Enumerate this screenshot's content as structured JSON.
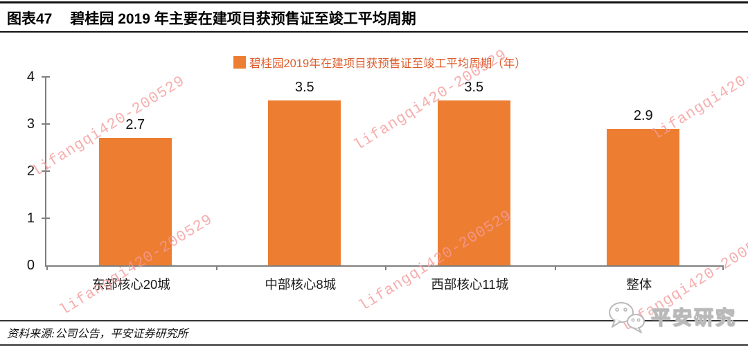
{
  "header": {
    "figure_label": "图表47",
    "title": "碧桂园 2019 年主要在建项目获预售证至竣工平均周期"
  },
  "chart_data": {
    "type": "bar",
    "title": "图表47 碧桂园 2019 年主要在建项目获预售证至竣工平均周期",
    "legend": [
      "碧桂园2019年在建项目获预售证至竣工平均周期（年）"
    ],
    "legend_position": "top-center",
    "categories": [
      "东部核心20城",
      "中部核心8城",
      "西部核心11城",
      "整体"
    ],
    "values": [
      2.7,
      3.5,
      3.5,
      2.9
    ],
    "value_labels": [
      "2.7",
      "3.5",
      "3.5",
      "2.9"
    ],
    "xlabel": "",
    "ylabel": "",
    "ylim": [
      0,
      4
    ],
    "yticks": [
      0,
      1,
      2,
      3,
      4
    ],
    "grid": false
  },
  "colors": {
    "bar": "#ED7D31",
    "legend_text": "#DD5C2B",
    "axis": "#7F7F7F",
    "watermark": "#F49B9B"
  },
  "watermark": {
    "text": "lifangqi420-200529"
  },
  "footer": {
    "source": "资料来源:公司公告，平安证券研究所",
    "logo_text": "平安研究"
  }
}
